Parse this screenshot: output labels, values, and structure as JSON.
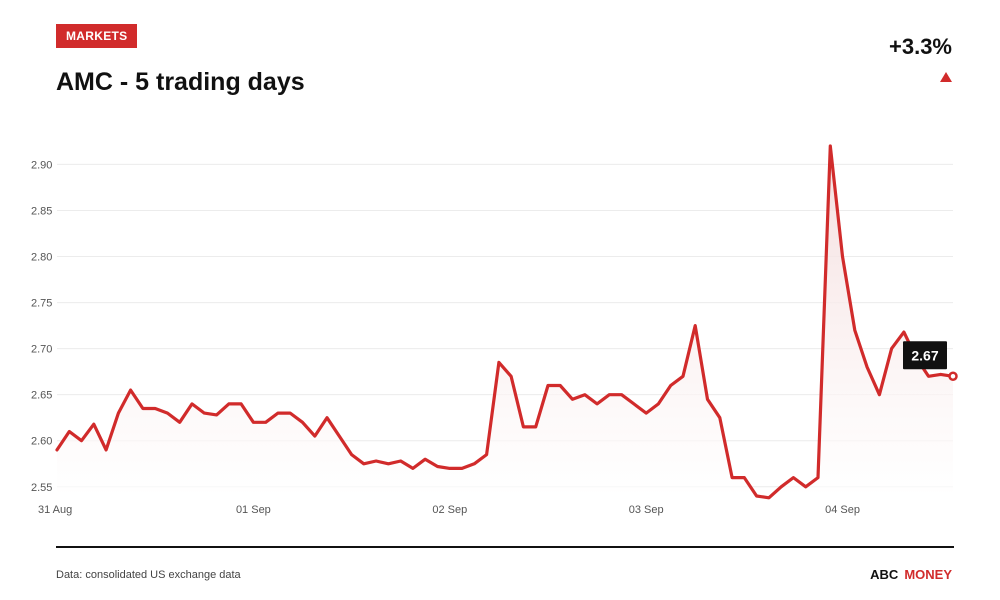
{
  "header": {
    "badge": "MARKETS",
    "title": "AMC - 5 trading days",
    "change": "+3.3%"
  },
  "footer": {
    "source": "Data: consolidated US exchange data",
    "brand_part1": "ABC",
    "brand_part2": "MONEY"
  },
  "colors": {
    "accent": "#d12b2b",
    "line": "#d12b2b",
    "fill_top": "#f3dada",
    "tooltip_bg": "#111111"
  },
  "chart_data": {
    "type": "line",
    "xlabel": "",
    "ylabel": "",
    "ylim": [
      2.54,
      2.92
    ],
    "yticks": [
      2.55,
      2.6,
      2.65,
      2.7,
      2.75,
      2.8,
      2.85,
      2.9
    ],
    "ytick_labels": [
      "2.55",
      "2.60",
      "2.65",
      "2.70",
      "2.75",
      "2.80",
      "2.85",
      "2.90"
    ],
    "xticks": [
      "31 Aug",
      "01 Sep",
      "02 Sep",
      "03 Sep",
      "04 Sep"
    ],
    "grid": true,
    "last_value_label": "2.67",
    "series": [
      {
        "values": [
          2.59,
          2.61,
          2.6,
          2.618,
          2.59,
          2.63,
          2.655,
          2.635,
          2.635,
          2.63,
          2.62,
          2.64,
          2.63,
          2.628,
          2.64,
          2.64,
          2.62,
          2.62,
          2.63,
          2.63,
          2.62,
          2.605,
          2.625,
          2.605,
          2.585,
          2.575,
          2.578,
          2.575,
          2.578,
          2.57,
          2.58,
          2.572,
          2.57,
          2.57,
          2.575,
          2.585,
          2.685,
          2.67,
          2.615,
          2.615,
          2.66,
          2.66,
          2.645,
          2.65,
          2.64,
          2.65,
          2.65,
          2.64,
          2.63,
          2.64,
          2.66,
          2.67,
          2.725,
          2.645,
          2.625,
          2.56,
          2.56,
          2.54,
          2.538,
          2.55,
          2.56,
          2.55,
          2.56,
          2.92,
          2.8,
          2.72,
          2.68,
          2.65,
          2.7,
          2.718,
          2.69,
          2.67,
          2.672,
          2.67
        ]
      }
    ]
  }
}
